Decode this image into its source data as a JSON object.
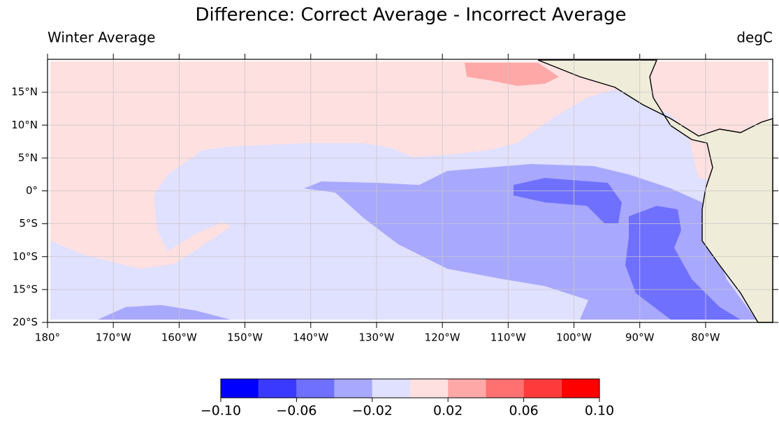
{
  "chart_data": {
    "type": "map",
    "title": "Difference: Correct Average - Incorrect Average",
    "subtitle_left": "Winter Average",
    "subtitle_right": "degC",
    "xlim": [
      180,
      290.2
    ],
    "xticks": [
      {
        "value": 180,
        "label": "180°"
      },
      {
        "value": 190,
        "label": "170°W"
      },
      {
        "value": 200,
        "label": "160°W"
      },
      {
        "value": 210,
        "label": "150°W"
      },
      {
        "value": 220,
        "label": "140°W"
      },
      {
        "value": 230,
        "label": "130°W"
      },
      {
        "value": 240,
        "label": "120°W"
      },
      {
        "value": 250,
        "label": "110°W"
      },
      {
        "value": 260,
        "label": "100°W"
      },
      {
        "value": 270,
        "label": "90°W"
      },
      {
        "value": 280,
        "label": "80°W"
      }
    ],
    "ylim": [
      -20,
      20
    ],
    "yticks": [
      {
        "value": -20,
        "label": "20°S"
      },
      {
        "value": -15,
        "label": "15°S"
      },
      {
        "value": -10,
        "label": "10°S"
      },
      {
        "value": -5,
        "label": "5°S"
      },
      {
        "value": 0,
        "label": "0°"
      },
      {
        "value": 5,
        "label": "5°N"
      },
      {
        "value": 10,
        "label": "10°N"
      },
      {
        "value": 15,
        "label": "15°N"
      }
    ],
    "grid": true,
    "colorbar": {
      "levels": [
        -0.1,
        -0.08,
        -0.06,
        -0.04,
        -0.02,
        0,
        0.02,
        0.04,
        0.06,
        0.08,
        0.1
      ],
      "colors": [
        "#0000ff",
        "#3a3aff",
        "#7070ff",
        "#a8a8ff",
        "#e0e0ff",
        "#ffe0e0",
        "#ffa8a8",
        "#ff7070",
        "#ff3a3a",
        "#ff0000"
      ],
      "ticks": [
        {
          "value": -0.1,
          "label": "−0.10"
        },
        {
          "value": -0.06,
          "label": "−0.06"
        },
        {
          "value": -0.02,
          "label": "−0.02"
        },
        {
          "value": 0.02,
          "label": "0.02"
        },
        {
          "value": 0.06,
          "label": "0.06"
        },
        {
          "value": 0.1,
          "label": "0.10"
        }
      ]
    }
  }
}
